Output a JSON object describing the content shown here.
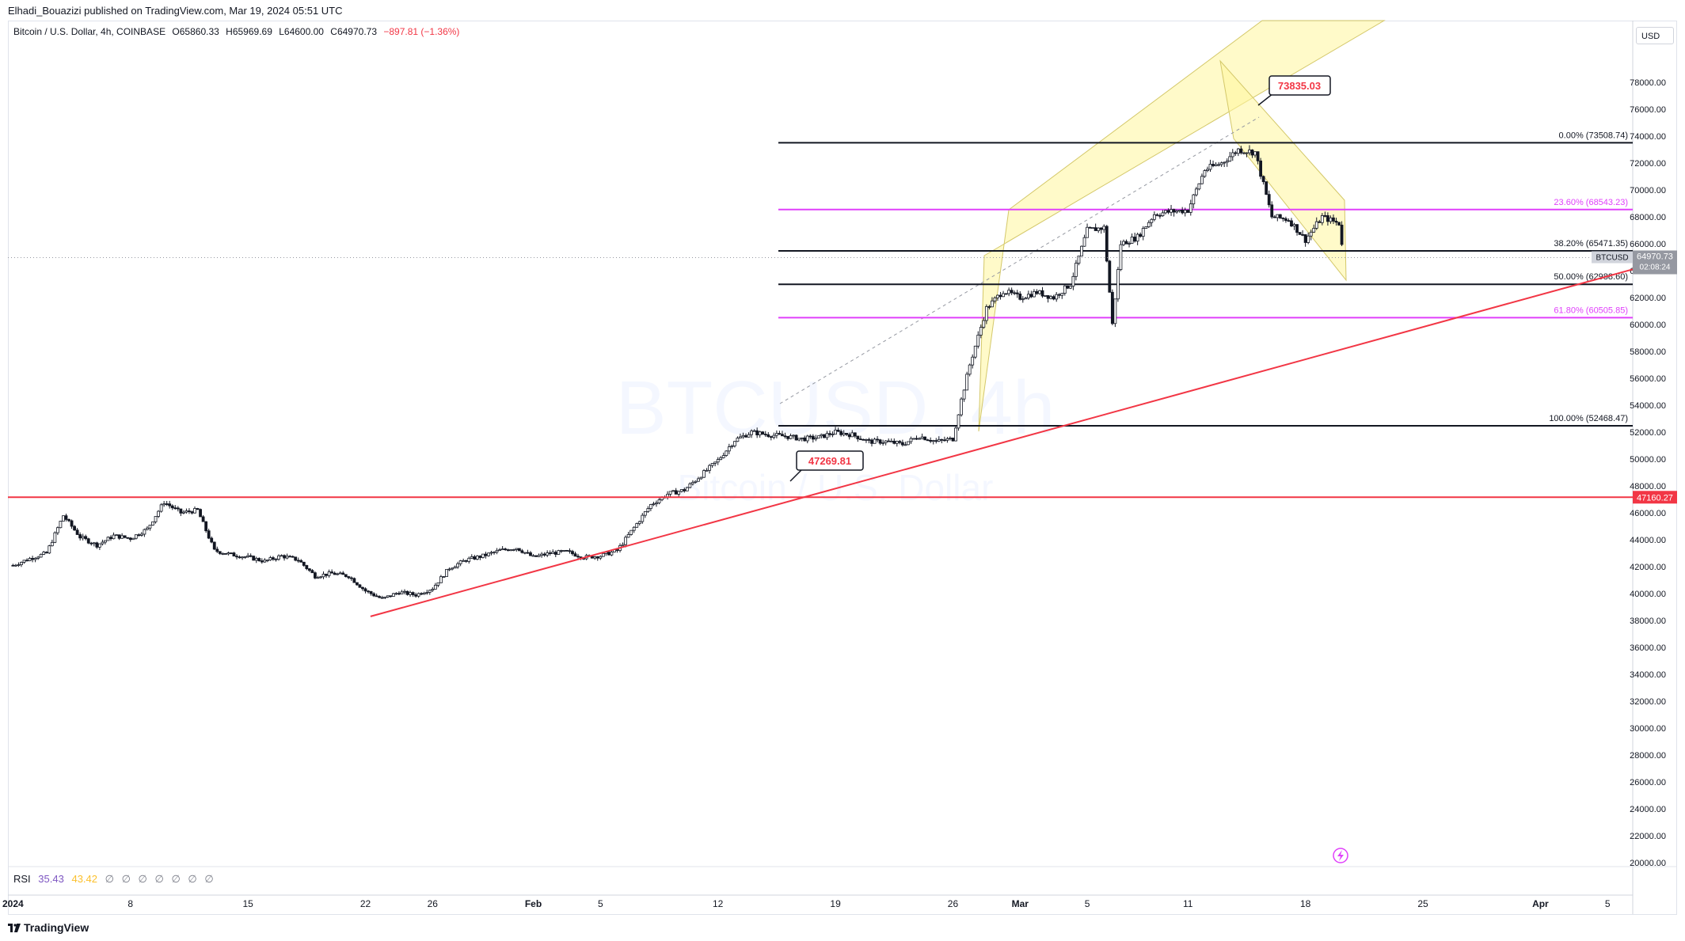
{
  "publisher": "Elhadi_Bouazizi published on TradingView.com, Mar 19, 2024 05:51 UTC",
  "symbol": {
    "name": "Bitcoin / U.S. Dollar, 4h, COINBASE",
    "open": "O65860.33",
    "high": "H65969.69",
    "low": "L64600.00",
    "close": "C64970.73",
    "change": "−897.81 (−1.36%)",
    "change_color": "#f23645"
  },
  "watermark": {
    "line1": "BTCUSD, 4h",
    "line2": "Bitcoin / U.S. Dollar"
  },
  "currency": "USD",
  "rsi": {
    "label": "RSI",
    "v1": "35.43",
    "v2": "43.42",
    "empties": [
      "∅",
      "∅",
      "∅",
      "∅",
      "∅",
      "∅",
      "∅"
    ]
  },
  "footer": "TradingView",
  "price_tag": {
    "symbol": "BTCUSD",
    "price": "64970.73",
    "countdown": "02:08:24"
  },
  "support_tag": "47160.27",
  "callouts": {
    "high": "73835.03",
    "low": "47269.81"
  },
  "chart_data": {
    "type": "candlestick",
    "title": "Bitcoin / U.S. Dollar, 4h, COINBASE",
    "ylim": [
      20000,
      80000
    ],
    "y_ticks": [
      20000,
      22000,
      24000,
      26000,
      28000,
      30000,
      32000,
      34000,
      36000,
      38000,
      40000,
      42000,
      44000,
      46000,
      48000,
      50000,
      52000,
      54000,
      56000,
      58000,
      60000,
      62000,
      64000,
      66000,
      68000,
      70000,
      72000,
      74000,
      76000,
      78000
    ],
    "y_tick_labels": [
      "20000.00",
      "22000.00",
      "24000.00",
      "26000.00",
      "28000.00",
      "30000.00",
      "32000.00",
      "34000.00",
      "36000.00",
      "38000.00",
      "40000.00",
      "42000.00",
      "44000.00",
      "46000.00",
      "48000.00",
      "50000.00",
      "52000.00",
      "54000.00",
      "56000.00",
      "58000.00",
      "60000.00",
      "62000.00",
      "64000.00",
      "66000.00",
      "68000.00",
      "70000.00",
      "72000.00",
      "74000.00",
      "76000.00",
      "78000.00"
    ],
    "x_labels": [
      {
        "day": 0,
        "label": "2024",
        "bold": true
      },
      {
        "day": 7,
        "label": "8"
      },
      {
        "day": 14,
        "label": "15"
      },
      {
        "day": 21,
        "label": "22"
      },
      {
        "day": 25,
        "label": "26"
      },
      {
        "day": 31,
        "label": "Feb",
        "bold": true
      },
      {
        "day": 35,
        "label": "5"
      },
      {
        "day": 42,
        "label": "12"
      },
      {
        "day": 49,
        "label": "19"
      },
      {
        "day": 56,
        "label": "26"
      },
      {
        "day": 60,
        "label": "Mar",
        "bold": true
      },
      {
        "day": 64,
        "label": "5"
      },
      {
        "day": 70,
        "label": "11"
      },
      {
        "day": 77,
        "label": "18"
      },
      {
        "day": 84,
        "label": "25"
      },
      {
        "day": 91,
        "label": "Apr",
        "bold": true
      },
      {
        "day": 95,
        "label": "5"
      }
    ],
    "x_range_days": [
      -0.3,
      96.5
    ],
    "price_path": [
      [
        0,
        42100
      ],
      [
        1,
        42600
      ],
      [
        2,
        43000
      ],
      [
        3,
        45800
      ],
      [
        4,
        44200
      ],
      [
        5,
        43600
      ],
      [
        6,
        44300
      ],
      [
        7,
        44100
      ],
      [
        8,
        44800
      ],
      [
        9,
        46800
      ],
      [
        10,
        46000
      ],
      [
        11,
        46200
      ],
      [
        12,
        43200
      ],
      [
        13,
        42900
      ],
      [
        14,
        42700
      ],
      [
        15,
        42400
      ],
      [
        16,
        42800
      ],
      [
        17,
        42500
      ],
      [
        18,
        41300
      ],
      [
        19,
        41500
      ],
      [
        20,
        41300
      ],
      [
        21,
        40200
      ],
      [
        22,
        39600
      ],
      [
        23,
        40100
      ],
      [
        24,
        39900
      ],
      [
        25,
        40400
      ],
      [
        26,
        41900
      ],
      [
        27,
        42500
      ],
      [
        28,
        42800
      ],
      [
        29,
        43200
      ],
      [
        30,
        43400
      ],
      [
        31,
        42700
      ],
      [
        32,
        43000
      ],
      [
        33,
        43100
      ],
      [
        34,
        42700
      ],
      [
        35,
        42800
      ],
      [
        36,
        43200
      ],
      [
        37,
        44900
      ],
      [
        38,
        46600
      ],
      [
        39,
        47400
      ],
      [
        40,
        47700
      ],
      [
        41,
        48800
      ],
      [
        42,
        49900
      ],
      [
        43,
        51400
      ],
      [
        44,
        52000
      ],
      [
        45,
        51800
      ],
      [
        46,
        51700
      ],
      [
        47,
        51500
      ],
      [
        48,
        51600
      ],
      [
        49,
        52000
      ],
      [
        50,
        51800
      ],
      [
        51,
        51300
      ],
      [
        52,
        51300
      ],
      [
        53,
        51100
      ],
      [
        54,
        51700
      ],
      [
        55,
        51300
      ],
      [
        56,
        51500
      ],
      [
        56.5,
        54400
      ],
      [
        57,
        57000
      ],
      [
        58,
        61200
      ],
      [
        59,
        62500
      ],
      [
        60,
        62000
      ],
      [
        61,
        62400
      ],
      [
        62,
        62000
      ],
      [
        63,
        63000
      ],
      [
        64,
        67000
      ],
      [
        65,
        67200
      ],
      [
        65.5,
        60000
      ],
      [
        66,
        66000
      ],
      [
        67,
        66500
      ],
      [
        68,
        68200
      ],
      [
        69,
        68400
      ],
      [
        70,
        68500
      ],
      [
        71,
        71500
      ],
      [
        72,
        72000
      ],
      [
        73,
        73000
      ],
      [
        74,
        72800
      ],
      [
        75,
        68000
      ],
      [
        76,
        67800
      ],
      [
        77,
        66300
      ],
      [
        78,
        68000
      ],
      [
        79,
        67500
      ],
      [
        79.3,
        64970
      ]
    ],
    "levels": [
      {
        "label": "0.00% (73508.74)",
        "price": 73508.74,
        "color": "#131722"
      },
      {
        "label": "23.60% (68543.23)",
        "price": 68543.23,
        "color": "#e040fb"
      },
      {
        "label": "38.20% (65471.35)",
        "price": 65471.35,
        "color": "#131722"
      },
      {
        "label": "50.00% (62988.60)",
        "price": 62988.6,
        "color": "#131722"
      },
      {
        "label": "61.80% (60505.85)",
        "price": 60505.85,
        "color": "#e040fb"
      },
      {
        "label": "100.00% (52468.47)",
        "price": 52468.47,
        "color": "#131722"
      }
    ],
    "support_line": {
      "price": 47160.27,
      "color": "#f23645"
    },
    "trendline": {
      "from": [
        21.3,
        38300
      ],
      "to": [
        96.5,
        64100
      ],
      "color": "#f23645"
    },
    "current_price": 64970.73,
    "rsi": [
      35.43,
      43.42
    ]
  }
}
